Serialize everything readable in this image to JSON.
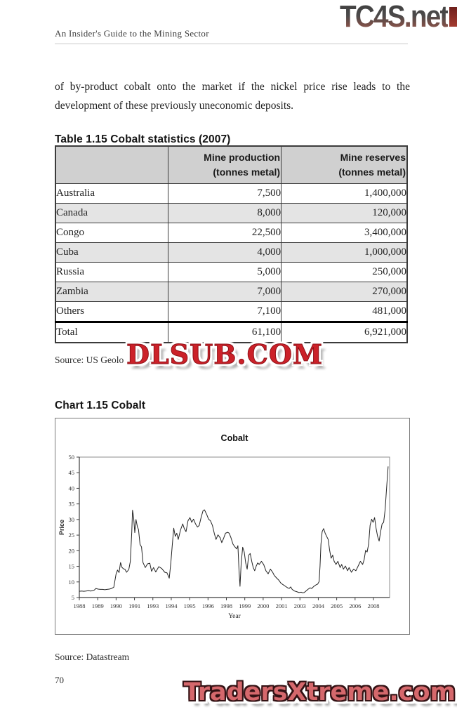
{
  "header": {
    "logo_text": "TC4S.net",
    "running_title": "An Insider's Guide to the Mining Sector"
  },
  "body": {
    "paragraph": "of by-product cobalt onto the market if the nickel price rise leads to the development of these previously uneconomic deposits."
  },
  "table": {
    "title": "Table 1.15 Cobalt statistics (2007)",
    "col_headers": [
      "",
      "Mine production\n(tonnes metal)",
      "Mine reserves\n(tonnes metal)"
    ],
    "rows": [
      {
        "label": "Australia",
        "production": "7,500",
        "reserves": "1,400,000"
      },
      {
        "label": "Canada",
        "production": "8,000",
        "reserves": "120,000"
      },
      {
        "label": "Congo",
        "production": "22,500",
        "reserves": "3,400,000"
      },
      {
        "label": "Cuba",
        "production": "4,000",
        "reserves": "1,000,000"
      },
      {
        "label": "Russia",
        "production": "5,000",
        "reserves": "250,000"
      },
      {
        "label": "Zambia",
        "production": "7,000",
        "reserves": "270,000"
      },
      {
        "label": "Others",
        "production": "7,100",
        "reserves": "481,000"
      }
    ],
    "total": {
      "label": "Total",
      "production": "61,100",
      "reserves": "6,921,000"
    },
    "source": "Source: US Geolo"
  },
  "chart_section": {
    "heading": "Chart 1.15 Cobalt",
    "source": "Source: Datastream"
  },
  "footer": {
    "page_number": "70"
  },
  "watermarks": {
    "dlsub": "DLSUB.COM",
    "tradersxtreme": "TradersXtreme.com"
  },
  "colors": {
    "watermark_red": "#cc2129",
    "tradersxtreme_red": "#d5686c",
    "table_header_bg": "#d0d0d0",
    "table_alt_row_bg": "#e4e4e4"
  },
  "chart_data": {
    "type": "line",
    "title": "Cobalt",
    "xlabel": "Year",
    "ylabel": "Price",
    "ylim": [
      5,
      50
    ],
    "yticks": [
      5,
      10,
      15,
      20,
      25,
      30,
      35,
      40,
      45,
      50
    ],
    "xtick_labels": [
      "1988",
      "1989",
      "1990",
      "1991",
      "1993",
      "1994",
      "1995",
      "1996",
      "1998",
      "1999",
      "2000",
      "2001",
      "2003",
      "2004",
      "2005",
      "2006",
      "2008"
    ],
    "x_range": [
      1988,
      2008.7
    ],
    "grid": false,
    "legend": "none",
    "series": [
      {
        "name": "Cobalt price",
        "points": [
          [
            1988.0,
            7.0
          ],
          [
            1988.15,
            7.1
          ],
          [
            1988.3,
            7.0
          ],
          [
            1988.45,
            7.1
          ],
          [
            1988.6,
            7.2
          ],
          [
            1988.75,
            7.1
          ],
          [
            1988.9,
            7.2
          ],
          [
            1989.0,
            7.4
          ],
          [
            1989.1,
            7.9
          ],
          [
            1989.25,
            7.7
          ],
          [
            1989.4,
            7.6
          ],
          [
            1989.55,
            7.6
          ],
          [
            1989.7,
            7.5
          ],
          [
            1989.85,
            7.6
          ],
          [
            1990.0,
            7.7
          ],
          [
            1990.15,
            7.9
          ],
          [
            1990.3,
            8.3
          ],
          [
            1990.45,
            12.5
          ],
          [
            1990.55,
            13.8
          ],
          [
            1990.65,
            13.0
          ],
          [
            1990.75,
            16.2
          ],
          [
            1990.85,
            14.6
          ],
          [
            1990.95,
            14.2
          ],
          [
            1991.05,
            14.0
          ],
          [
            1991.15,
            13.1
          ],
          [
            1991.3,
            14.0
          ],
          [
            1991.4,
            16.5
          ],
          [
            1991.5,
            26.0
          ],
          [
            1991.55,
            33.0
          ],
          [
            1991.62,
            30.8
          ],
          [
            1991.7,
            25.8
          ],
          [
            1991.78,
            30.0
          ],
          [
            1991.88,
            27.6
          ],
          [
            1991.95,
            26.8
          ],
          [
            1992.05,
            22.0
          ],
          [
            1992.15,
            21.2
          ],
          [
            1992.25,
            16.2
          ],
          [
            1992.4,
            14.6
          ],
          [
            1992.55,
            15.8
          ],
          [
            1992.7,
            16.0
          ],
          [
            1992.82,
            13.4
          ],
          [
            1992.95,
            14.6
          ],
          [
            1993.1,
            13.2
          ],
          [
            1993.3,
            14.9
          ],
          [
            1993.5,
            14.3
          ],
          [
            1993.7,
            13.1
          ],
          [
            1993.85,
            12.9
          ],
          [
            1994.0,
            11.2
          ],
          [
            1994.1,
            16.0
          ],
          [
            1994.2,
            21.8
          ],
          [
            1994.3,
            27.2
          ],
          [
            1994.4,
            24.6
          ],
          [
            1994.5,
            25.6
          ],
          [
            1994.6,
            23.6
          ],
          [
            1994.75,
            26.6
          ],
          [
            1994.9,
            28.6
          ],
          [
            1995.0,
            27.1
          ],
          [
            1995.12,
            26.1
          ],
          [
            1995.25,
            29.6
          ],
          [
            1995.38,
            30.6
          ],
          [
            1995.5,
            29.1
          ],
          [
            1995.62,
            30.1
          ],
          [
            1995.75,
            28.6
          ],
          [
            1995.88,
            27.6
          ],
          [
            1996.0,
            28.1
          ],
          [
            1996.12,
            30.6
          ],
          [
            1996.25,
            32.8
          ],
          [
            1996.35,
            33.1
          ],
          [
            1996.5,
            31.6
          ],
          [
            1996.62,
            30.1
          ],
          [
            1996.75,
            29.6
          ],
          [
            1996.88,
            28.1
          ],
          [
            1997.0,
            25.6
          ],
          [
            1997.12,
            23.6
          ],
          [
            1997.25,
            25.1
          ],
          [
            1997.4,
            24.1
          ],
          [
            1997.5,
            22.6
          ],
          [
            1997.62,
            23.9
          ],
          [
            1997.75,
            25.6
          ],
          [
            1997.9,
            25.9
          ],
          [
            1998.0,
            25.6
          ],
          [
            1998.12,
            24.1
          ],
          [
            1998.25,
            22.1
          ],
          [
            1998.4,
            21.1
          ],
          [
            1998.5,
            20.6
          ],
          [
            1998.58,
            21.6
          ],
          [
            1998.65,
            14.1
          ],
          [
            1998.72,
            8.6
          ],
          [
            1998.8,
            16.1
          ],
          [
            1998.9,
            21.1
          ],
          [
            1999.0,
            19.6
          ],
          [
            1999.1,
            16.1
          ],
          [
            1999.2,
            14.1
          ],
          [
            1999.3,
            18.6
          ],
          [
            1999.4,
            19.1
          ],
          [
            1999.5,
            16.6
          ],
          [
            1999.6,
            14.6
          ],
          [
            1999.7,
            13.6
          ],
          [
            1999.8,
            15.1
          ],
          [
            1999.9,
            16.1
          ],
          [
            2000.0,
            15.6
          ],
          [
            2000.15,
            16.6
          ],
          [
            2000.3,
            15.6
          ],
          [
            2000.45,
            13.6
          ],
          [
            2000.6,
            12.6
          ],
          [
            2000.75,
            14.1
          ],
          [
            2000.9,
            13.1
          ],
          [
            2001.0,
            12.1
          ],
          [
            2001.15,
            11.3
          ],
          [
            2001.3,
            10.6
          ],
          [
            2001.45,
            9.6
          ],
          [
            2001.6,
            9.1
          ],
          [
            2001.75,
            8.6
          ],
          [
            2001.9,
            8.1
          ],
          [
            2002.0,
            7.9
          ],
          [
            2002.1,
            8.4
          ],
          [
            2002.2,
            7.6
          ],
          [
            2002.35,
            7.1
          ],
          [
            2002.5,
            6.9
          ],
          [
            2002.65,
            6.6
          ],
          [
            2002.8,
            6.7
          ],
          [
            2002.9,
            6.5
          ],
          [
            2003.0,
            6.6
          ],
          [
            2003.12,
            7.1
          ],
          [
            2003.25,
            7.6
          ],
          [
            2003.4,
            8.1
          ],
          [
            2003.5,
            7.9
          ],
          [
            2003.65,
            8.6
          ],
          [
            2003.8,
            9.1
          ],
          [
            2003.9,
            9.3
          ],
          [
            2004.0,
            10.1
          ],
          [
            2004.06,
            15.1
          ],
          [
            2004.12,
            22.1
          ],
          [
            2004.2,
            26.1
          ],
          [
            2004.3,
            27.1
          ],
          [
            2004.4,
            25.6
          ],
          [
            2004.5,
            24.6
          ],
          [
            2004.6,
            23.6
          ],
          [
            2004.7,
            20.1
          ],
          [
            2004.8,
            17.6
          ],
          [
            2004.9,
            18.6
          ],
          [
            2005.0,
            16.6
          ],
          [
            2005.12,
            15.6
          ],
          [
            2005.25,
            16.6
          ],
          [
            2005.4,
            14.6
          ],
          [
            2005.5,
            15.6
          ],
          [
            2005.62,
            14.1
          ],
          [
            2005.75,
            15.1
          ],
          [
            2005.9,
            13.6
          ],
          [
            2006.0,
            14.6
          ],
          [
            2006.15,
            13.1
          ],
          [
            2006.3,
            14.1
          ],
          [
            2006.45,
            13.6
          ],
          [
            2006.6,
            15.1
          ],
          [
            2006.75,
            16.6
          ],
          [
            2006.9,
            15.6
          ],
          [
            2007.0,
            17.1
          ],
          [
            2007.1,
            20.1
          ],
          [
            2007.2,
            19.6
          ],
          [
            2007.3,
            22.1
          ],
          [
            2007.4,
            28.1
          ],
          [
            2007.5,
            30.1
          ],
          [
            2007.6,
            29.1
          ],
          [
            2007.7,
            30.6
          ],
          [
            2007.8,
            27.1
          ],
          [
            2007.9,
            24.6
          ],
          [
            2008.0,
            23.1
          ],
          [
            2008.1,
            26.1
          ],
          [
            2008.2,
            28.6
          ],
          [
            2008.3,
            29.1
          ],
          [
            2008.4,
            33.1
          ],
          [
            2008.5,
            40.1
          ],
          [
            2008.6,
            47.0
          ]
        ]
      }
    ]
  }
}
